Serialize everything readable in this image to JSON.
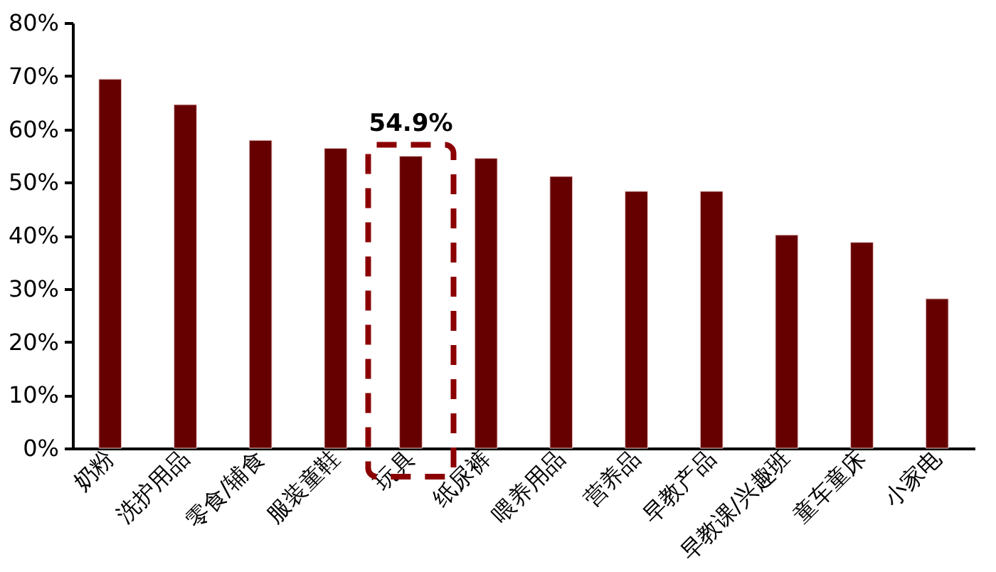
{
  "chart_data": {
    "type": "bar",
    "categories": [
      "奶粉",
      "洗护用品",
      "零食/辅食",
      "服装童鞋",
      "玩具",
      "纸尿裤",
      "喂养用品",
      "营养品",
      "早教产品",
      "早教课/兴趣班",
      "童车童床",
      "小家电"
    ],
    "values": [
      69.4,
      64.6,
      57.9,
      56.4,
      54.9,
      54.5,
      51.1,
      48.3,
      48.3,
      40.1,
      38.7,
      28.1
    ],
    "color": "#660000",
    "ylim": [
      0,
      80
    ],
    "yticks": [
      {
        "value": 0,
        "label": "0%"
      },
      {
        "value": 10,
        "label": "10%"
      },
      {
        "value": 20,
        "label": "20%"
      },
      {
        "value": 30,
        "label": "30%"
      },
      {
        "value": 40,
        "label": "40%"
      },
      {
        "value": 50,
        "label": "50%"
      },
      {
        "value": 60,
        "label": "60%"
      },
      {
        "value": 70,
        "label": "70%"
      },
      {
        "value": 80,
        "label": "80%"
      }
    ],
    "grid": false,
    "annotations": [
      {
        "text": "54.9%",
        "x": "玩具",
        "y": 54.9
      }
    ]
  }
}
